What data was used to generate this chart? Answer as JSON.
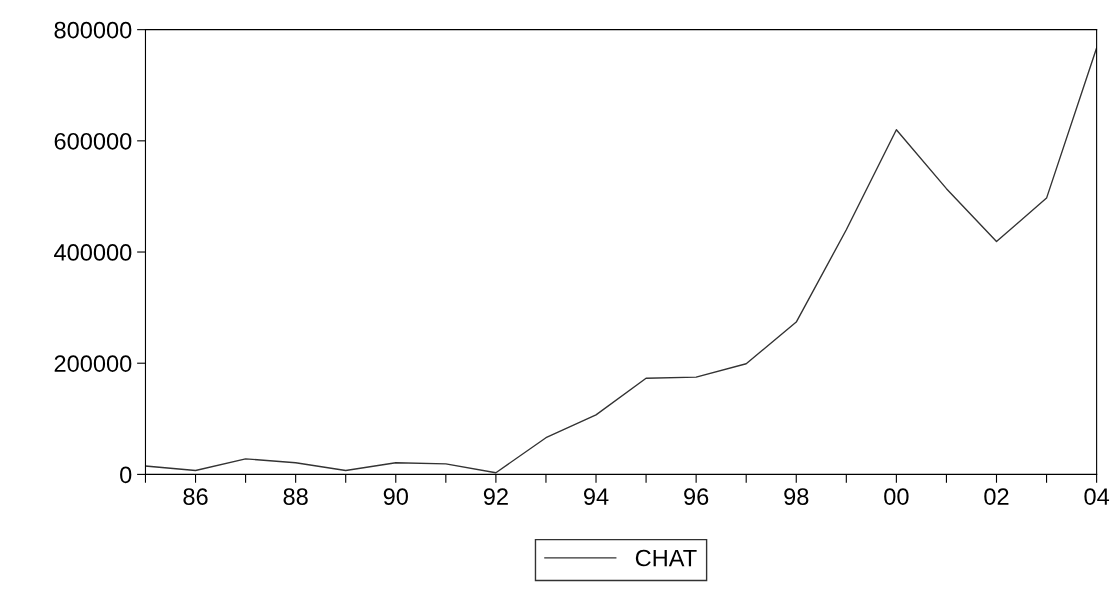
{
  "chart_data": {
    "type": "line",
    "x": [
      1985,
      1986,
      1987,
      1988,
      1989,
      1990,
      1991,
      1992,
      1993,
      1994,
      1995,
      1996,
      1997,
      1998,
      1999,
      2000,
      2001,
      2002,
      2003,
      2004
    ],
    "series": [
      {
        "name": "CHAT",
        "color": "#333333",
        "values": [
          15000,
          7000,
          28000,
          21000,
          7000,
          21000,
          19000,
          3000,
          66000,
          107000,
          173000,
          175000,
          199000,
          274000,
          440000,
          620000,
          514000,
          419000,
          497000,
          767000
        ]
      }
    ],
    "xlim": [
      1985,
      2004
    ],
    "xticks": [
      {
        "value": 1985,
        "label": null
      },
      {
        "value": 1986,
        "label": "86"
      },
      {
        "value": 1987,
        "label": null
      },
      {
        "value": 1988,
        "label": "88"
      },
      {
        "value": 1989,
        "label": null
      },
      {
        "value": 1990,
        "label": "90"
      },
      {
        "value": 1991,
        "label": null
      },
      {
        "value": 1992,
        "label": "92"
      },
      {
        "value": 1993,
        "label": null
      },
      {
        "value": 1994,
        "label": "94"
      },
      {
        "value": 1995,
        "label": null
      },
      {
        "value": 1996,
        "label": "96"
      },
      {
        "value": 1997,
        "label": null
      },
      {
        "value": 1998,
        "label": "98"
      },
      {
        "value": 1999,
        "label": null
      },
      {
        "value": 2000,
        "label": "00"
      },
      {
        "value": 2001,
        "label": null
      },
      {
        "value": 2002,
        "label": "02"
      },
      {
        "value": 2003,
        "label": null
      },
      {
        "value": 2004,
        "label": "04"
      }
    ],
    "ylim": [
      0,
      800000
    ],
    "yticks": [
      0,
      200000,
      400000,
      600000,
      800000
    ],
    "grid": false,
    "legend": "bottom",
    "marker": "none",
    "line_style": "solid"
  }
}
